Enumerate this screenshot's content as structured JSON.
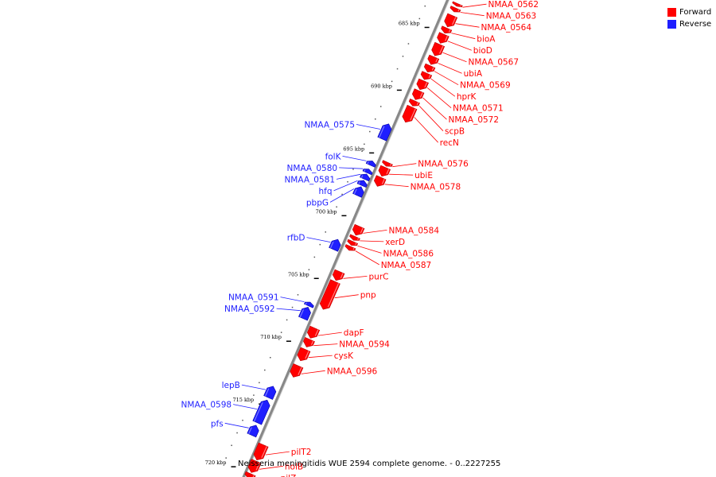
{
  "colors": {
    "forward": "#ff0000",
    "reverse": "#1f1fff",
    "forward_dark": "#b80000",
    "reverse_dark": "#0000a8",
    "backbone": "#888888"
  },
  "legend": {
    "forward": "Forward",
    "reverse": "Reverse"
  },
  "caption": "Neisseria meningitidis WUE 2594 complete genome. - 0..2227255",
  "genome": {
    "start_kbp": 682.5,
    "end_kbp": 720.5
  },
  "ticks": [
    {
      "kbp": 685,
      "label": "685 kbp"
    },
    {
      "kbp": 690,
      "label": "690 kbp"
    },
    {
      "kbp": 695,
      "label": "695 kbp"
    },
    {
      "kbp": 700,
      "label": "700 kbp"
    },
    {
      "kbp": 705,
      "label": "705 kbp"
    },
    {
      "kbp": 710,
      "label": "710 kbp"
    },
    {
      "kbp": 715,
      "label": "715 kbp"
    },
    {
      "kbp": 720,
      "label": "720 kbp"
    }
  ],
  "genes": [
    {
      "label": "NMAA_0562",
      "strand": "forward",
      "start": 682.55,
      "end": 682.75
    },
    {
      "label": "NMAA_0563",
      "strand": "forward",
      "start": 682.9,
      "end": 683.2
    },
    {
      "label": "NMAA_0564",
      "strand": "forward",
      "start": 683.5,
      "end": 684.4
    },
    {
      "label": "bioA",
      "strand": "forward",
      "start": 684.5,
      "end": 684.9
    },
    {
      "label": "bioD",
      "strand": "forward",
      "start": 685.0,
      "end": 685.7
    },
    {
      "label": "NMAA_0567",
      "strand": "forward",
      "start": 685.8,
      "end": 686.7
    },
    {
      "label": "ubiA",
      "strand": "forward",
      "start": 686.8,
      "end": 687.4
    },
    {
      "label": "NMAA_0569",
      "strand": "forward",
      "start": 687.5,
      "end": 688.0
    },
    {
      "label": "hprK",
      "strand": "forward",
      "start": 688.1,
      "end": 688.6
    },
    {
      "label": "NMAA_0571",
      "strand": "forward",
      "start": 688.7,
      "end": 689.4
    },
    {
      "label": "NMAA_0572",
      "strand": "forward",
      "start": 689.5,
      "end": 690.2
    },
    {
      "label": "scpB",
      "strand": "forward",
      "start": 690.3,
      "end": 690.7
    },
    {
      "label": "recN",
      "strand": "forward",
      "start": 690.8,
      "end": 692.0
    },
    {
      "label": "NMAA_0575",
      "strand": "reverse",
      "start": 692.6,
      "end": 693.8
    },
    {
      "label": "NMAA_0576",
      "strand": "forward",
      "start": 695.2,
      "end": 695.5
    },
    {
      "label": "folK",
      "strand": "reverse",
      "start": 695.55,
      "end": 695.9
    },
    {
      "label": "ubiE",
      "strand": "forward",
      "start": 695.6,
      "end": 696.3
    },
    {
      "label": "NMAA_0580",
      "strand": "reverse",
      "start": 696.2,
      "end": 696.5
    },
    {
      "label": "NMAA_0581",
      "strand": "reverse",
      "start": 696.6,
      "end": 697.0
    },
    {
      "label": "NMAA_0578",
      "strand": "forward",
      "start": 696.4,
      "end": 697.1
    },
    {
      "label": "hfq",
      "strand": "reverse",
      "start": 697.1,
      "end": 697.5
    },
    {
      "label": "pbpG",
      "strand": "reverse",
      "start": 697.6,
      "end": 698.3
    },
    {
      "label": "NMAA_0584",
      "strand": "forward",
      "start": 700.3,
      "end": 701.0
    },
    {
      "label": "xerD",
      "strand": "forward",
      "start": 701.1,
      "end": 701.4
    },
    {
      "label": "NMAA_0586",
      "strand": "forward",
      "start": 701.5,
      "end": 701.8
    },
    {
      "label": "rfbD",
      "strand": "reverse",
      "start": 701.8,
      "end": 702.6
    },
    {
      "label": "NMAA_0587",
      "strand": "forward",
      "start": 701.9,
      "end": 702.2
    },
    {
      "label": "purC",
      "strand": "forward",
      "start": 703.9,
      "end": 704.6
    },
    {
      "label": "pnp",
      "strand": "forward",
      "start": 704.7,
      "end": 706.9
    },
    {
      "label": "NMAA_0591",
      "strand": "reverse",
      "start": 706.8,
      "end": 707.1
    },
    {
      "label": "NMAA_0592",
      "strand": "reverse",
      "start": 707.2,
      "end": 708.1
    },
    {
      "label": "dapF",
      "strand": "forward",
      "start": 708.4,
      "end": 709.2
    },
    {
      "label": "NMAA_0594",
      "strand": "forward",
      "start": 709.3,
      "end": 709.9
    },
    {
      "label": "cysK",
      "strand": "forward",
      "start": 710.1,
      "end": 711.0
    },
    {
      "label": "NMAA_0596",
      "strand": "forward",
      "start": 711.4,
      "end": 712.3
    },
    {
      "label": "lepB",
      "strand": "reverse",
      "start": 713.5,
      "end": 714.4
    },
    {
      "label": "NMAA_0598",
      "strand": "reverse",
      "start": 714.6,
      "end": 716.4
    },
    {
      "label": "pfs",
      "strand": "reverse",
      "start": 716.6,
      "end": 717.4
    },
    {
      "label": "pilT2",
      "strand": "forward",
      "start": 717.7,
      "end": 718.9
    },
    {
      "label": "holB",
      "strand": "forward",
      "start": 719.0,
      "end": 719.9
    },
    {
      "label": "pilZ",
      "strand": "forward",
      "start": 720.0,
      "end": 720.4
    }
  ]
}
